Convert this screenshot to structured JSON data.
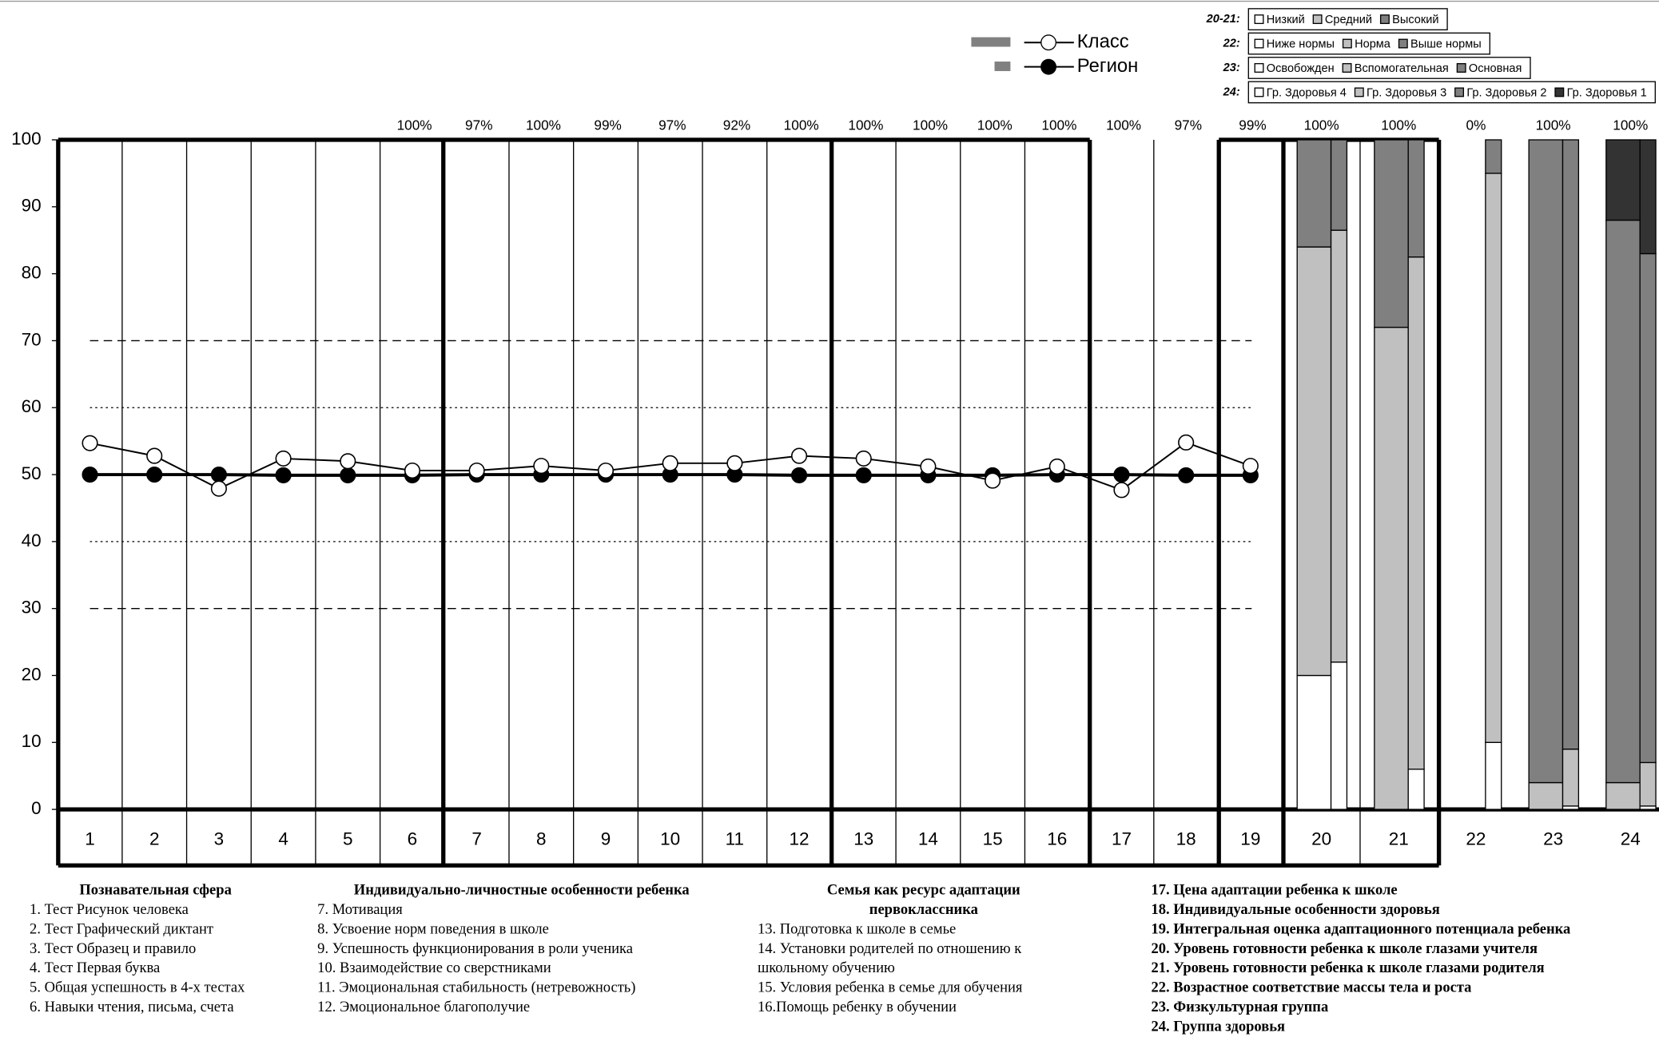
{
  "chart_data": {
    "type": "line",
    "categories": [
      "1",
      "2",
      "3",
      "4",
      "5",
      "6",
      "7",
      "8",
      "9",
      "10",
      "11",
      "12",
      "13",
      "14",
      "15",
      "16",
      "17",
      "18",
      "19",
      "20",
      "21",
      "22",
      "23",
      "24"
    ],
    "series": [
      {
        "name": "Класс",
        "color": "#ffffff",
        "values": [
          54.7,
          52.8,
          47.9,
          52.4,
          52.0,
          50.6,
          50.6,
          51.3,
          50.6,
          51.7,
          51.7,
          52.8,
          52.4,
          51.2,
          49.1,
          51.2,
          47.7,
          54.8,
          51.3,
          null,
          null,
          null,
          null,
          null
        ]
      },
      {
        "name": "Регион",
        "color": "#000000",
        "values": [
          50,
          50,
          50,
          49.9,
          49.9,
          49.9,
          50,
          50,
          50,
          50,
          50,
          49.9,
          49.9,
          49.9,
          49.9,
          50,
          50,
          49.9,
          49.9,
          null,
          null,
          null,
          null,
          null
        ]
      }
    ],
    "ylim": [
      0,
      100
    ],
    "yticks": [
      0,
      10,
      20,
      30,
      40,
      50,
      60,
      70,
      80,
      90,
      100
    ],
    "reference_lines": [
      {
        "value": 70,
        "style": "dashed"
      },
      {
        "value": 60,
        "style": "dotted"
      },
      {
        "value": 40,
        "style": "dotted"
      },
      {
        "value": 30,
        "style": "dashed"
      }
    ],
    "coverage_labels": [
      null,
      null,
      null,
      null,
      null,
      "100%",
      "97%",
      "100%",
      "99%",
      "97%",
      "92%",
      "100%",
      "100%",
      "100%",
      "100%",
      "100%",
      "100%",
      "97%",
      "99%",
      "100%",
      "100%",
      "0%",
      "100%",
      "100%"
    ],
    "stack_colors": [
      "#ffffff",
      "#c0c0c0",
      "#808080",
      "#333333"
    ],
    "stacks": [
      {
        "class": [
          20,
          64,
          16
        ],
        "region": [
          22,
          64.5,
          13.5
        ]
      },
      {
        "class": [
          0,
          72,
          28
        ],
        "region": [
          6,
          76.5,
          17.5
        ]
      },
      {
        "class": [
          0,
          0,
          0
        ],
        "region": [
          10,
          85,
          5
        ]
      },
      {
        "class": [
          0,
          4,
          96
        ],
        "region": [
          0.5,
          8.5,
          91
        ]
      },
      {
        "class": [
          0,
          4,
          84,
          12
        ],
        "region": [
          0.5,
          6.5,
          76,
          17
        ]
      }
    ],
    "stack_legend": [
      {
        "label": "20-21:",
        "items": [
          "Низкий",
          "Средний",
          "Высокий"
        ]
      },
      {
        "label": "22:",
        "items": [
          "Ниже нормы",
          "Норма",
          "Выше нормы"
        ]
      },
      {
        "label": "23:",
        "items": [
          "Освобожден",
          "Вспомогательная",
          "Основная"
        ]
      },
      {
        "label": "24:",
        "items": [
          "Гр. Здоровья 4",
          "Гр. Здоровья 3",
          "Гр. Здоровья 2",
          "Гр. Здоровья 1"
        ]
      }
    ],
    "notes": [
      {
        "title": [
          "Познавательная сфера"
        ],
        "items": [
          "1. Тест Рисунок человека",
          "2. Тест Графический диктант",
          "3. Тест Образец и правило",
          "4. Тест Первая буква",
          "5. Общая успешность в 4-х тестах",
          "6. Навыки чтения, письма, счета"
        ]
      },
      {
        "title": [
          "Индивидуально-личностные особенности ребенка"
        ],
        "items": [
          "7. Мотивация",
          "8. Усвоение норм поведения в школе",
          "9. Успешность функционирования в роли ученика",
          "10. Взаимодействие со сверстниками",
          "11. Эмоциональная стабильность (нетревожность)",
          "12. Эмоциональное благополучие"
        ]
      },
      {
        "title": [
          "Семья как ресурс адаптации",
          "первоклассника"
        ],
        "items": [
          "13. Подготовка к школе в семье",
          "14.  Установки  родителей  по  отношению  к",
          "школьному обучению",
          "15. Условия ребенка в семье для обучения",
          "16.Помощь ребенку в обучении"
        ]
      },
      {
        "title": [],
        "items": [
          "17. Цена адаптации ребенка к школе",
          "18. Индивидуальные особенности здоровья",
          "19. Интегральная оценка адаптационного потенциала ребенка",
          "20. Уровень готовности ребенка к школе глазами учителя",
          "21. Уровень готовности ребенка к школе глазами родителя",
          "22. Возрастное соответствие  массы тела и роста",
          "23. Физкультурная группа",
          "24. Группа здоровья"
        ]
      }
    ]
  }
}
